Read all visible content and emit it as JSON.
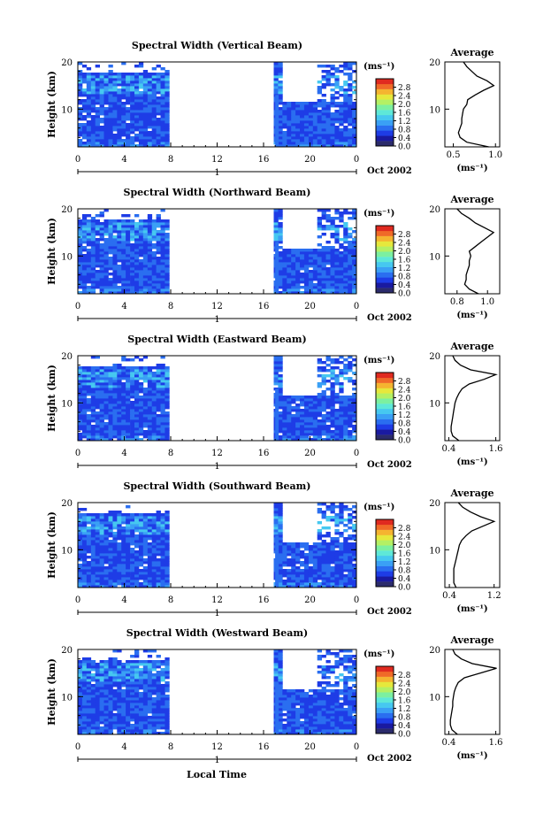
{
  "colors": {
    "scale": [
      "#2b2b6b",
      "#1a1aa0",
      "#1e3ce6",
      "#2a6ef0",
      "#3aa0f5",
      "#46c8f0",
      "#5ee8d8",
      "#7cf0a0",
      "#b4f064",
      "#e6e83c",
      "#f5b430",
      "#f06a28",
      "#e02a20"
    ],
    "background": "#ffffff",
    "axes": "#000000"
  },
  "footer": {
    "xlabel": "Local Time"
  },
  "chart_data": [
    {
      "type": "heatmap",
      "title": "Spectral Width (Vertical Beam)",
      "xlabel": "",
      "ylabel": "Height (km)",
      "xticks": [
        "0",
        "4",
        "8",
        "12",
        "16",
        "20",
        "0"
      ],
      "xlim": [
        0,
        24
      ],
      "ylim": [
        2,
        20
      ],
      "yticks": [
        "20",
        "10"
      ],
      "date_label": "Oct 2002",
      "day_marker": "1",
      "colorbar": {
        "unit": "(ms⁻¹)",
        "ticks": [
          "2.8",
          "2.4",
          "2.0",
          "1.6",
          "1.2",
          "0.8",
          "0.4",
          "0.0"
        ],
        "range": [
          0,
          3.2
        ]
      },
      "data_gaps": [
        [
          8,
          17
        ],
        [
          17.6,
          17.8
        ]
      ],
      "average": {
        "title": "Average",
        "xlabel": "(ms⁻¹)",
        "xticks": [
          "0.5",
          "1.0"
        ],
        "xlim": [
          0.4,
          1.05
        ],
        "height": [
          2,
          3,
          4,
          5,
          6,
          7,
          8,
          9,
          10,
          11,
          12,
          13,
          14,
          15,
          16,
          17,
          18,
          19,
          20
        ],
        "value": [
          0.92,
          0.66,
          0.58,
          0.56,
          0.58,
          0.6,
          0.6,
          0.61,
          0.62,
          0.66,
          0.67,
          0.76,
          0.86,
          0.98,
          0.9,
          0.78,
          0.72,
          0.66,
          0.62
        ]
      }
    },
    {
      "type": "heatmap",
      "title": "Spectral Width (Northward Beam)",
      "xlabel": "",
      "ylabel": "Height (km)",
      "xticks": [
        "0",
        "4",
        "8",
        "12",
        "16",
        "20",
        "0"
      ],
      "xlim": [
        0,
        24
      ],
      "ylim": [
        2,
        20
      ],
      "yticks": [
        "20",
        "10"
      ],
      "date_label": "Oct 2002",
      "day_marker": "1",
      "colorbar": {
        "unit": "(ms⁻¹)",
        "ticks": [
          "2.8",
          "2.4",
          "2.0",
          "1.6",
          "1.2",
          "0.8",
          "0.4",
          "0.0"
        ],
        "range": [
          0,
          3.2
        ]
      },
      "data_gaps": [
        [
          8,
          17
        ],
        [
          17.6,
          17.8
        ]
      ],
      "average": {
        "title": "Average",
        "xlabel": "(ms⁻¹)",
        "xticks": [
          "0.8",
          "1.0"
        ],
        "xlim": [
          0.72,
          1.08
        ],
        "height": [
          2,
          3,
          4,
          5,
          6,
          7,
          8,
          9,
          10,
          11,
          12,
          13,
          14,
          15,
          16,
          17,
          18,
          19,
          20
        ],
        "value": [
          0.94,
          0.88,
          0.85,
          0.86,
          0.86,
          0.87,
          0.88,
          0.88,
          0.89,
          0.88,
          0.92,
          0.96,
          1.0,
          1.04,
          0.98,
          0.92,
          0.88,
          0.83,
          0.8
        ]
      }
    },
    {
      "type": "heatmap",
      "title": "Spectral Width (Eastward Beam)",
      "xlabel": "",
      "ylabel": "Height (km)",
      "xticks": [
        "0",
        "4",
        "8",
        "12",
        "16",
        "20",
        "0"
      ],
      "xlim": [
        0,
        24
      ],
      "ylim": [
        2,
        20
      ],
      "yticks": [
        "20",
        "10"
      ],
      "date_label": "Oct 2002",
      "day_marker": "1",
      "colorbar": {
        "unit": "(ms⁻¹)",
        "ticks": [
          "2.8",
          "2.4",
          "2.0",
          "1.6",
          "1.2",
          "0.8",
          "0.4",
          "0.0"
        ],
        "range": [
          0,
          3.2
        ]
      },
      "data_gaps": [
        [
          8,
          17
        ],
        [
          17.6,
          17.8
        ]
      ],
      "average": {
        "title": "Average",
        "xlabel": "(ms⁻¹)",
        "xticks": [
          "0.4",
          "1.6"
        ],
        "xlim": [
          0.3,
          1.7
        ],
        "height": [
          2,
          3,
          4,
          5,
          6,
          7,
          8,
          9,
          10,
          11,
          12,
          13,
          14,
          15,
          16,
          17,
          18,
          19,
          20
        ],
        "value": [
          0.66,
          0.5,
          0.46,
          0.46,
          0.48,
          0.5,
          0.52,
          0.54,
          0.56,
          0.6,
          0.66,
          0.74,
          0.92,
          1.3,
          1.6,
          0.96,
          0.7,
          0.56,
          0.5
        ]
      }
    },
    {
      "type": "heatmap",
      "title": "Spectral Width (Southward Beam)",
      "xlabel": "",
      "ylabel": "Height (km)",
      "xticks": [
        "0",
        "4",
        "8",
        "12",
        "16",
        "20",
        "0"
      ],
      "xlim": [
        0,
        24
      ],
      "ylim": [
        2,
        20
      ],
      "yticks": [
        "20",
        "10"
      ],
      "date_label": "Oct 2002",
      "day_marker": "1",
      "colorbar": {
        "unit": "(ms⁻¹)",
        "ticks": [
          "2.8",
          "2.4",
          "2.0",
          "1.6",
          "1.2",
          "0.8",
          "0.4",
          "0.0"
        ],
        "range": [
          0,
          3.2
        ]
      },
      "data_gaps": [
        [
          8,
          17
        ],
        [
          17.6,
          17.8
        ]
      ],
      "average": {
        "title": "Average",
        "xlabel": "(ms⁻¹)",
        "xticks": [
          "0.4",
          "1.2"
        ],
        "xlim": [
          0.32,
          1.3
        ],
        "height": [
          2,
          3,
          4,
          5,
          6,
          7,
          8,
          9,
          10,
          11,
          12,
          13,
          14,
          15,
          16,
          17,
          18,
          19,
          20
        ],
        "value": [
          0.52,
          0.48,
          0.48,
          0.48,
          0.48,
          0.5,
          0.52,
          0.54,
          0.56,
          0.58,
          0.62,
          0.7,
          0.8,
          1.0,
          1.2,
          0.96,
          0.78,
          0.64,
          0.56
        ]
      }
    },
    {
      "type": "heatmap",
      "title": "Spectral Width (Westward Beam)",
      "xlabel": "",
      "ylabel": "Height (km)",
      "xticks": [
        "0",
        "4",
        "8",
        "12",
        "16",
        "20",
        "0"
      ],
      "xlim": [
        0,
        24
      ],
      "ylim": [
        2,
        20
      ],
      "yticks": [
        "20",
        "10"
      ],
      "date_label": "Oct 2002",
      "day_marker": "1",
      "colorbar": {
        "unit": "(ms⁻¹)",
        "ticks": [
          "2.8",
          "2.4",
          "2.0",
          "1.6",
          "1.2",
          "0.8",
          "0.4",
          "0.0"
        ],
        "range": [
          0,
          3.2
        ]
      },
      "data_gaps": [
        [
          8,
          17
        ],
        [
          17.6,
          17.8
        ]
      ],
      "average": {
        "title": "Average",
        "xlabel": "(ms⁻¹)",
        "xticks": [
          "0.4",
          "1.6"
        ],
        "xlim": [
          0.3,
          1.7
        ],
        "height": [
          2,
          3,
          4,
          5,
          6,
          7,
          8,
          9,
          10,
          11,
          12,
          13,
          14,
          15,
          16,
          17,
          18,
          19,
          20
        ],
        "value": [
          0.62,
          0.48,
          0.44,
          0.44,
          0.46,
          0.48,
          0.5,
          0.5,
          0.52,
          0.54,
          0.58,
          0.64,
          0.8,
          1.2,
          1.62,
          1.0,
          0.72,
          0.56,
          0.5
        ]
      }
    }
  ]
}
